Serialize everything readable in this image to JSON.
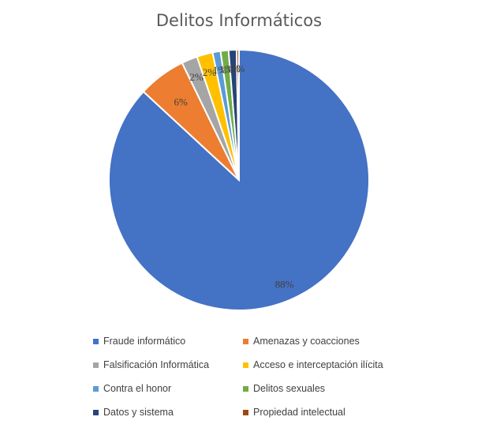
{
  "chart_data": {
    "type": "pie",
    "title": "Delitos Informáticos",
    "categories": [
      "Fraude informático",
      "Amenazas y coacciones",
      "Falsificación Informática",
      "Acceso e interceptación ilícita",
      "Contra el honor",
      "Delitos sexuales",
      "Datos y sistema",
      "Propiedad intelectual"
    ],
    "values": [
      88,
      6,
      2,
      2,
      1,
      1,
      1,
      0.3
    ],
    "data_labels": [
      "88%",
      "6%",
      "2%",
      "2%",
      "1%",
      "1%",
      "1%",
      "0%"
    ],
    "colors": [
      "#4472C4",
      "#ED7D31",
      "#A5A5A5",
      "#FFC000",
      "#5B9BD5",
      "#70AD47",
      "#264478",
      "#9E480E"
    ],
    "legend_position": "bottom"
  }
}
